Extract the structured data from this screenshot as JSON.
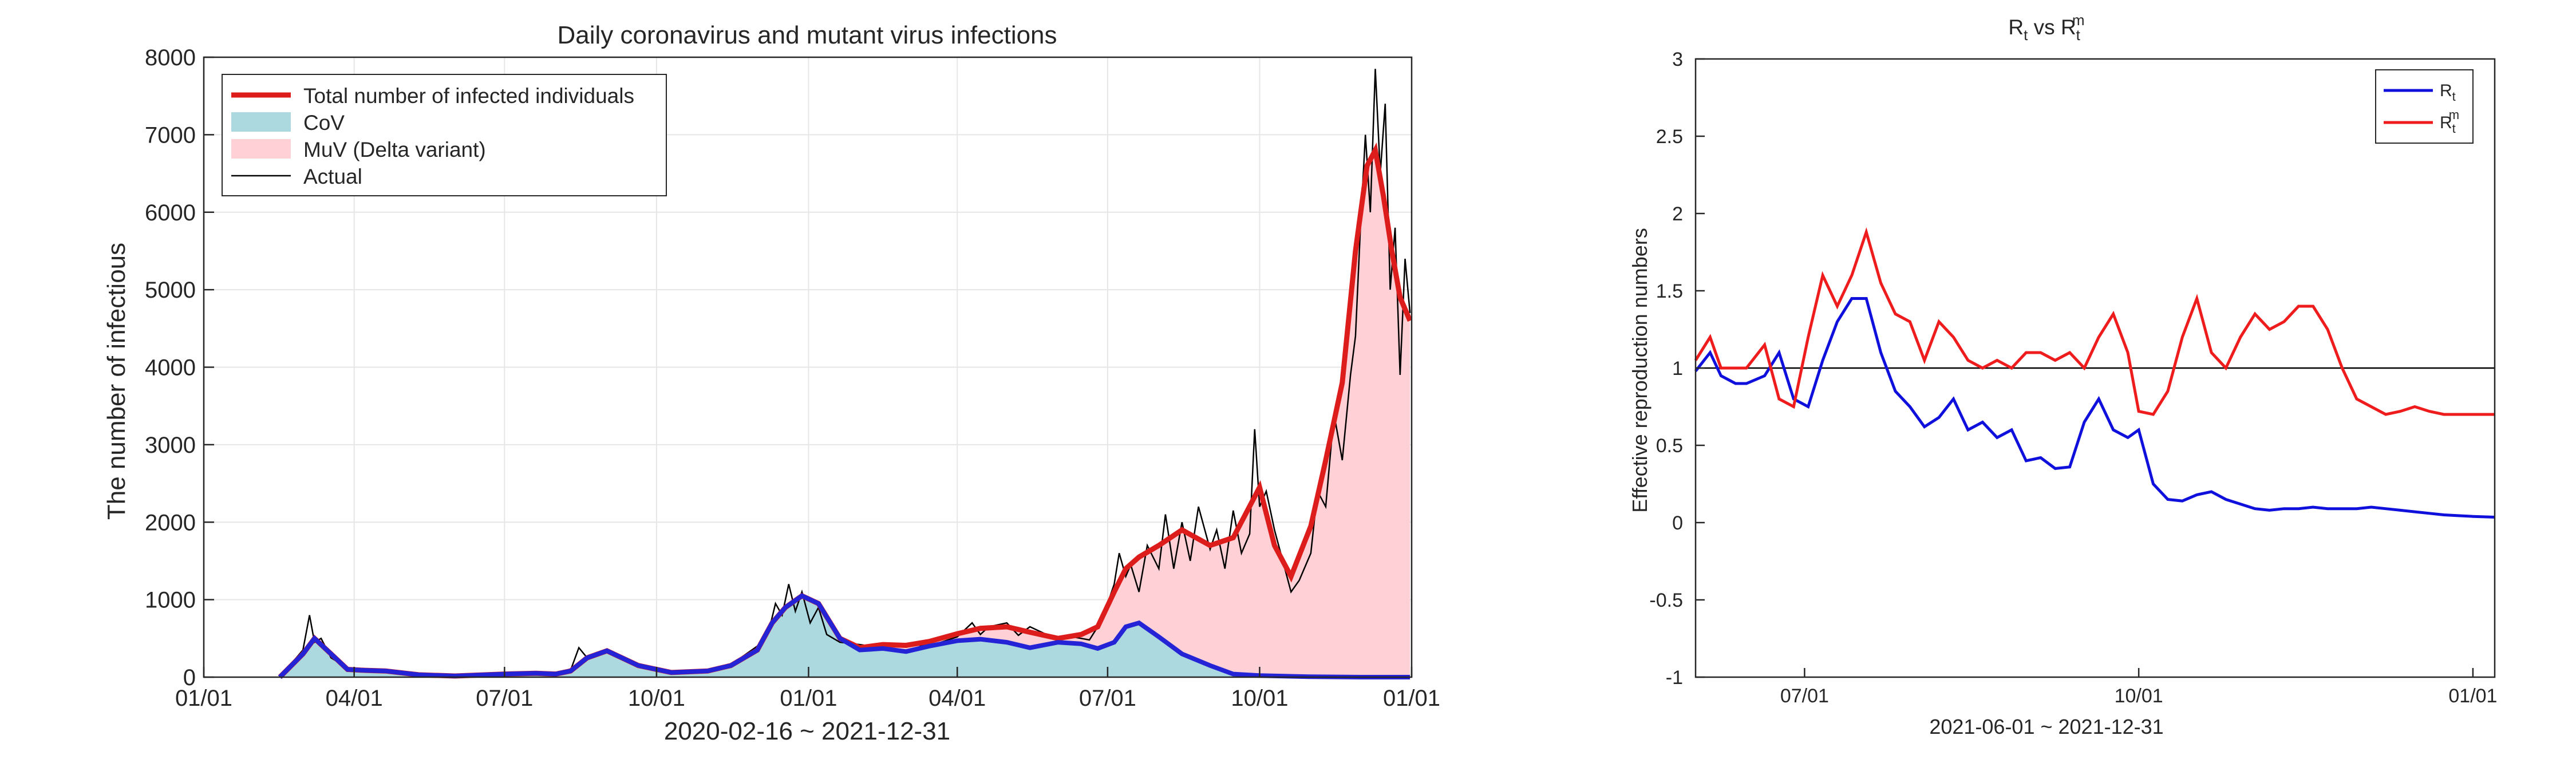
{
  "chart_data": [
    {
      "type": "area",
      "title": "Daily coronavirus and mutant virus infections",
      "xlabel": "2020-02-16 ~ 2021-12-31",
      "ylabel": "The number of infectious",
      "xlim": [
        "2020-01-01",
        "2022-01-01"
      ],
      "ylim": [
        0,
        8000
      ],
      "grid": true,
      "legend_position": "top-left",
      "x_tick_labels": [
        "01/01",
        "04/01",
        "07/01",
        "10/01",
        "01/01",
        "04/01",
        "07/01",
        "10/01",
        "01/01"
      ],
      "x_ticks": [
        "2020-01-01",
        "2020-04-01",
        "2020-07-01",
        "2020-10-01",
        "2021-01-01",
        "2021-04-01",
        "2021-07-01",
        "2021-10-01",
        "2022-01-01"
      ],
      "y_ticks": [
        0,
        1000,
        2000,
        3000,
        4000,
        5000,
        6000,
        7000,
        8000
      ],
      "legend": [
        {
          "label": "Total number of infected individuals",
          "style": "line",
          "color": "#dd1c1c"
        },
        {
          "label": "CoV",
          "style": "patch",
          "color": "#acd8e0"
        },
        {
          "label": "MuV (Delta variant)",
          "style": "patch",
          "color": "#ffd0d6"
        },
        {
          "label": "Actual",
          "style": "thin-line",
          "color": "#000000"
        }
      ],
      "series": [
        {
          "name": "CoV",
          "color": "#acd8e0",
          "edge_color": "#2424d6",
          "x": [
            "2020-02-16",
            "2020-03-01",
            "2020-03-08",
            "2020-03-18",
            "2020-03-28",
            "2020-04-05",
            "2020-04-20",
            "2020-05-10",
            "2020-06-01",
            "2020-07-01",
            "2020-07-20",
            "2020-08-01",
            "2020-08-10",
            "2020-08-20",
            "2020-09-01",
            "2020-09-20",
            "2020-10-10",
            "2020-11-01",
            "2020-11-15",
            "2020-12-01",
            "2020-12-10",
            "2020-12-18",
            "2020-12-28",
            "2021-01-07",
            "2021-01-20",
            "2021-02-01",
            "2021-02-15",
            "2021-03-01",
            "2021-03-15",
            "2021-04-01",
            "2021-04-15",
            "2021-05-01",
            "2021-05-15",
            "2021-06-01",
            "2021-06-15",
            "2021-06-25",
            "2021-07-05",
            "2021-07-12",
            "2021-07-20",
            "2021-08-01",
            "2021-08-15",
            "2021-09-01",
            "2021-09-15",
            "2021-10-01",
            "2021-11-01",
            "2021-12-01",
            "2021-12-31"
          ],
          "values": [
            0,
            300,
            500,
            300,
            100,
            90,
            80,
            30,
            15,
            40,
            50,
            40,
            80,
            250,
            340,
            150,
            60,
            80,
            150,
            350,
            700,
            900,
            1050,
            950,
            500,
            350,
            370,
            330,
            400,
            470,
            490,
            450,
            380,
            450,
            430,
            370,
            450,
            650,
            700,
            520,
            300,
            150,
            40,
            20,
            5,
            0,
            0
          ]
        },
        {
          "name": "Total number of infected individuals",
          "color": "#dd1c1c",
          "x": [
            "2020-02-16",
            "2020-03-01",
            "2020-03-08",
            "2020-03-18",
            "2020-03-28",
            "2020-04-05",
            "2020-04-20",
            "2020-05-10",
            "2020-06-01",
            "2020-07-01",
            "2020-07-20",
            "2020-08-01",
            "2020-08-10",
            "2020-08-20",
            "2020-09-01",
            "2020-09-20",
            "2020-10-10",
            "2020-11-01",
            "2020-11-15",
            "2020-12-01",
            "2020-12-10",
            "2020-12-18",
            "2020-12-28",
            "2021-01-07",
            "2021-01-20",
            "2021-02-01",
            "2021-02-15",
            "2021-03-01",
            "2021-03-15",
            "2021-04-01",
            "2021-04-15",
            "2021-05-01",
            "2021-05-15",
            "2021-06-01",
            "2021-06-15",
            "2021-06-25",
            "2021-07-05",
            "2021-07-12",
            "2021-07-20",
            "2021-08-01",
            "2021-08-15",
            "2021-09-01",
            "2021-09-15",
            "2021-10-01",
            "2021-10-10",
            "2021-10-20",
            "2021-11-01",
            "2021-11-10",
            "2021-11-20",
            "2021-11-28",
            "2021-12-05",
            "2021-12-10",
            "2021-12-15",
            "2021-12-20",
            "2021-12-25",
            "2021-12-31"
          ],
          "values": [
            0,
            300,
            500,
            300,
            100,
            90,
            80,
            30,
            15,
            40,
            50,
            40,
            80,
            250,
            340,
            150,
            60,
            80,
            150,
            350,
            700,
            900,
            1050,
            950,
            500,
            380,
            420,
            410,
            460,
            560,
            630,
            650,
            580,
            500,
            550,
            650,
            1100,
            1400,
            1550,
            1700,
            1900,
            1700,
            1800,
            2450,
            1700,
            1300,
            1950,
            2800,
            3800,
            5500,
            6600,
            6800,
            6200,
            5500,
            4900,
            4600
          ]
        },
        {
          "name": "Actual",
          "color": "#000000",
          "x": [
            "2020-02-16",
            "2020-03-01",
            "2020-03-05",
            "2020-03-08",
            "2020-03-12",
            "2020-03-18",
            "2020-03-28",
            "2020-04-05",
            "2020-04-20",
            "2020-05-10",
            "2020-06-01",
            "2020-07-01",
            "2020-07-20",
            "2020-08-01",
            "2020-08-10",
            "2020-08-15",
            "2020-08-20",
            "2020-08-25",
            "2020-09-01",
            "2020-09-20",
            "2020-10-10",
            "2020-11-01",
            "2020-11-15",
            "2020-12-01",
            "2020-12-08",
            "2020-12-12",
            "2020-12-16",
            "2020-12-20",
            "2020-12-24",
            "2020-12-28",
            "2021-01-02",
            "2021-01-07",
            "2021-01-12",
            "2021-01-20",
            "2021-02-01",
            "2021-02-15",
            "2021-03-01",
            "2021-03-15",
            "2021-04-01",
            "2021-04-10",
            "2021-04-15",
            "2021-04-20",
            "2021-05-01",
            "2021-05-08",
            "2021-05-15",
            "2021-06-01",
            "2021-06-10",
            "2021-06-20",
            "2021-06-25",
            "2021-07-01",
            "2021-07-05",
            "2021-07-08",
            "2021-07-12",
            "2021-07-15",
            "2021-07-20",
            "2021-07-25",
            "2021-08-01",
            "2021-08-05",
            "2021-08-10",
            "2021-08-15",
            "2021-08-20",
            "2021-08-25",
            "2021-09-01",
            "2021-09-05",
            "2021-09-10",
            "2021-09-15",
            "2021-09-20",
            "2021-09-25",
            "2021-09-28",
            "2021-10-01",
            "2021-10-05",
            "2021-10-10",
            "2021-10-15",
            "2021-10-20",
            "2021-10-25",
            "2021-11-01",
            "2021-11-05",
            "2021-11-10",
            "2021-11-15",
            "2021-11-20",
            "2021-11-25",
            "2021-11-28",
            "2021-12-01",
            "2021-12-04",
            "2021-12-07",
            "2021-12-10",
            "2021-12-13",
            "2021-12-16",
            "2021-12-19",
            "2021-12-22",
            "2021-12-25",
            "2021-12-28",
            "2021-12-31"
          ],
          "values": [
            0,
            350,
            800,
            450,
            500,
            250,
            120,
            110,
            60,
            30,
            20,
            40,
            50,
            45,
            90,
            380,
            250,
            300,
            330,
            140,
            70,
            90,
            160,
            400,
            600,
            950,
            800,
            1200,
            850,
            1100,
            700,
            900,
            550,
            450,
            420,
            380,
            430,
            400,
            520,
            700,
            550,
            650,
            700,
            540,
            650,
            480,
            520,
            480,
            650,
            950,
            1200,
            1600,
            1300,
            1450,
            1100,
            1700,
            1400,
            2100,
            1400,
            2000,
            1500,
            2200,
            1650,
            1900,
            1400,
            2150,
            1600,
            1850,
            3200,
            2200,
            2400,
            1900,
            1500,
            1100,
            1250,
            1600,
            2400,
            2200,
            3400,
            2800,
            3900,
            4400,
            5800,
            7000,
            6000,
            7850,
            6500,
            7400,
            5000,
            5800,
            3900,
            5400,
            4700
          ]
        },
        {
          "name": "MuV (Delta variant)",
          "color": "#ffd0d6",
          "note_x": [
            "2021-01-01"
          ]
        }
      ]
    },
    {
      "type": "line",
      "title": "R_t vs R_t^m",
      "title_parts": {
        "r1": "R",
        "sub1": "t",
        "vs": " vs ",
        "r2": "R",
        "sub2": "t",
        "sup2": "m"
      },
      "xlabel": "2021-06-01 ~ 2021-12-31",
      "ylabel": "Effective reproduction numbers",
      "xlim": [
        "2021-06-01",
        "2022-01-07"
      ],
      "ylim": [
        -1,
        3
      ],
      "grid": false,
      "legend_position": "top-right",
      "x_tick_labels": [
        "07/01",
        "10/01",
        "01/01"
      ],
      "x_ticks": [
        "2021-07-01",
        "2021-10-01",
        "2022-01-01"
      ],
      "y_ticks": [
        -1,
        -0.5,
        0,
        0.5,
        1,
        1.5,
        2,
        2.5,
        3
      ],
      "y_tick_labels": [
        "-1",
        "-0.5",
        "0",
        "0.5",
        "1",
        "1.5",
        "2",
        "2.5",
        "3"
      ],
      "reference_line": 1,
      "legend": [
        {
          "label": "R",
          "sub": "t",
          "sup": "",
          "color": "#1010dd"
        },
        {
          "label": "R",
          "sub": "t",
          "sup": "m",
          "color": "#ee1c1c"
        }
      ],
      "series": [
        {
          "name": "R_t",
          "color": "#1010dd",
          "x": [
            "2021-06-01",
            "2021-06-05",
            "2021-06-08",
            "2021-06-12",
            "2021-06-15",
            "2021-06-20",
            "2021-06-24",
            "2021-06-28",
            "2021-07-02",
            "2021-07-06",
            "2021-07-10",
            "2021-07-14",
            "2021-07-18",
            "2021-07-22",
            "2021-07-26",
            "2021-07-30",
            "2021-08-03",
            "2021-08-07",
            "2021-08-11",
            "2021-08-15",
            "2021-08-19",
            "2021-08-23",
            "2021-08-27",
            "2021-08-31",
            "2021-09-04",
            "2021-09-08",
            "2021-09-12",
            "2021-09-16",
            "2021-09-20",
            "2021-09-24",
            "2021-09-28",
            "2021-10-01",
            "2021-10-05",
            "2021-10-09",
            "2021-10-13",
            "2021-10-17",
            "2021-10-21",
            "2021-10-25",
            "2021-10-29",
            "2021-11-02",
            "2021-11-06",
            "2021-11-10",
            "2021-11-14",
            "2021-11-18",
            "2021-11-22",
            "2021-11-26",
            "2021-11-30",
            "2021-12-04",
            "2021-12-08",
            "2021-12-12",
            "2021-12-16",
            "2021-12-20",
            "2021-12-24",
            "2021-12-28",
            "2022-01-01",
            "2022-01-07"
          ],
          "values": [
            0.98,
            1.1,
            0.95,
            0.9,
            0.9,
            0.95,
            1.1,
            0.8,
            0.75,
            1.05,
            1.3,
            1.45,
            1.45,
            1.1,
            0.85,
            0.75,
            0.62,
            0.68,
            0.8,
            0.6,
            0.65,
            0.55,
            0.6,
            0.4,
            0.42,
            0.35,
            0.36,
            0.65,
            0.8,
            0.6,
            0.55,
            0.6,
            0.25,
            0.15,
            0.14,
            0.18,
            0.2,
            0.15,
            0.12,
            0.09,
            0.08,
            0.09,
            0.09,
            0.1,
            0.09,
            0.09,
            0.09,
            0.1,
            0.09,
            0.08,
            0.07,
            0.06,
            0.05,
            0.045,
            0.04,
            0.035
          ]
        },
        {
          "name": "R_t^m",
          "color": "#ee1c1c",
          "x": [
            "2021-06-01",
            "2021-06-05",
            "2021-06-08",
            "2021-06-12",
            "2021-06-15",
            "2021-06-20",
            "2021-06-24",
            "2021-06-28",
            "2021-07-02",
            "2021-07-06",
            "2021-07-10",
            "2021-07-14",
            "2021-07-18",
            "2021-07-22",
            "2021-07-26",
            "2021-07-30",
            "2021-08-03",
            "2021-08-07",
            "2021-08-11",
            "2021-08-15",
            "2021-08-19",
            "2021-08-23",
            "2021-08-27",
            "2021-08-31",
            "2021-09-04",
            "2021-09-08",
            "2021-09-12",
            "2021-09-16",
            "2021-09-20",
            "2021-09-24",
            "2021-09-28",
            "2021-10-01",
            "2021-10-05",
            "2021-10-09",
            "2021-10-13",
            "2021-10-17",
            "2021-10-21",
            "2021-10-25",
            "2021-10-29",
            "2021-11-02",
            "2021-11-06",
            "2021-11-10",
            "2021-11-14",
            "2021-11-18",
            "2021-11-22",
            "2021-11-26",
            "2021-11-30",
            "2021-12-04",
            "2021-12-08",
            "2021-12-12",
            "2021-12-16",
            "2021-12-20",
            "2021-12-24",
            "2021-12-28",
            "2022-01-01",
            "2022-01-07"
          ],
          "values": [
            1.05,
            1.2,
            1.0,
            1.0,
            1.0,
            1.15,
            0.8,
            0.75,
            1.2,
            1.6,
            1.4,
            1.6,
            1.88,
            1.55,
            1.35,
            1.3,
            1.05,
            1.3,
            1.2,
            1.05,
            1.0,
            1.05,
            1.0,
            1.1,
            1.1,
            1.05,
            1.1,
            1.0,
            1.2,
            1.35,
            1.1,
            0.72,
            0.7,
            0.85,
            1.2,
            1.45,
            1.1,
            1.0,
            1.2,
            1.35,
            1.25,
            1.3,
            1.4,
            1.4,
            1.25,
            1.0,
            0.8,
            0.75,
            0.7,
            0.72,
            0.75,
            0.72,
            0.7,
            0.7,
            0.7,
            0.7
          ]
        }
      ]
    }
  ]
}
